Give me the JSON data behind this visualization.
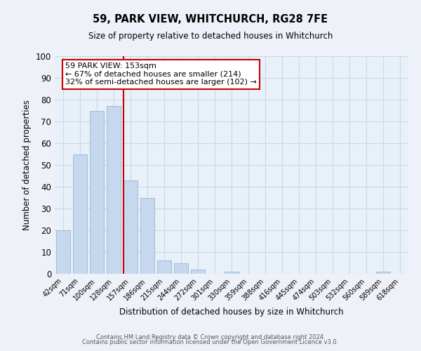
{
  "title": "59, PARK VIEW, WHITCHURCH, RG28 7FE",
  "subtitle": "Size of property relative to detached houses in Whitchurch",
  "xlabel": "Distribution of detached houses by size in Whitchurch",
  "ylabel": "Number of detached properties",
  "bar_labels": [
    "42sqm",
    "71sqm",
    "100sqm",
    "128sqm",
    "157sqm",
    "186sqm",
    "215sqm",
    "244sqm",
    "272sqm",
    "301sqm",
    "330sqm",
    "359sqm",
    "388sqm",
    "416sqm",
    "445sqm",
    "474sqm",
    "503sqm",
    "532sqm",
    "560sqm",
    "589sqm",
    "618sqm"
  ],
  "bar_values": [
    20,
    55,
    75,
    77,
    43,
    35,
    6,
    5,
    2,
    0,
    1,
    0,
    0,
    0,
    0,
    0,
    0,
    0,
    0,
    1,
    0
  ],
  "bar_color": "#c5d8ed",
  "bar_edge_color": "#a0bcd8",
  "vline_color": "#cc0000",
  "annotation_text": "59 PARK VIEW: 153sqm\n← 67% of detached houses are smaller (214)\n32% of semi-detached houses are larger (102) →",
  "annotation_box_color": "#ffffff",
  "annotation_box_edge_color": "#cc0000",
  "ylim": [
    0,
    100
  ],
  "yticks": [
    0,
    10,
    20,
    30,
    40,
    50,
    60,
    70,
    80,
    90,
    100
  ],
  "grid_color": "#ccd8e8",
  "bg_color": "#e8f0f8",
  "fig_bg_color": "#eef2f8",
  "footer_line1": "Contains HM Land Registry data © Crown copyright and database right 2024.",
  "footer_line2": "Contains public sector information licensed under the Open Government Licence v3.0."
}
